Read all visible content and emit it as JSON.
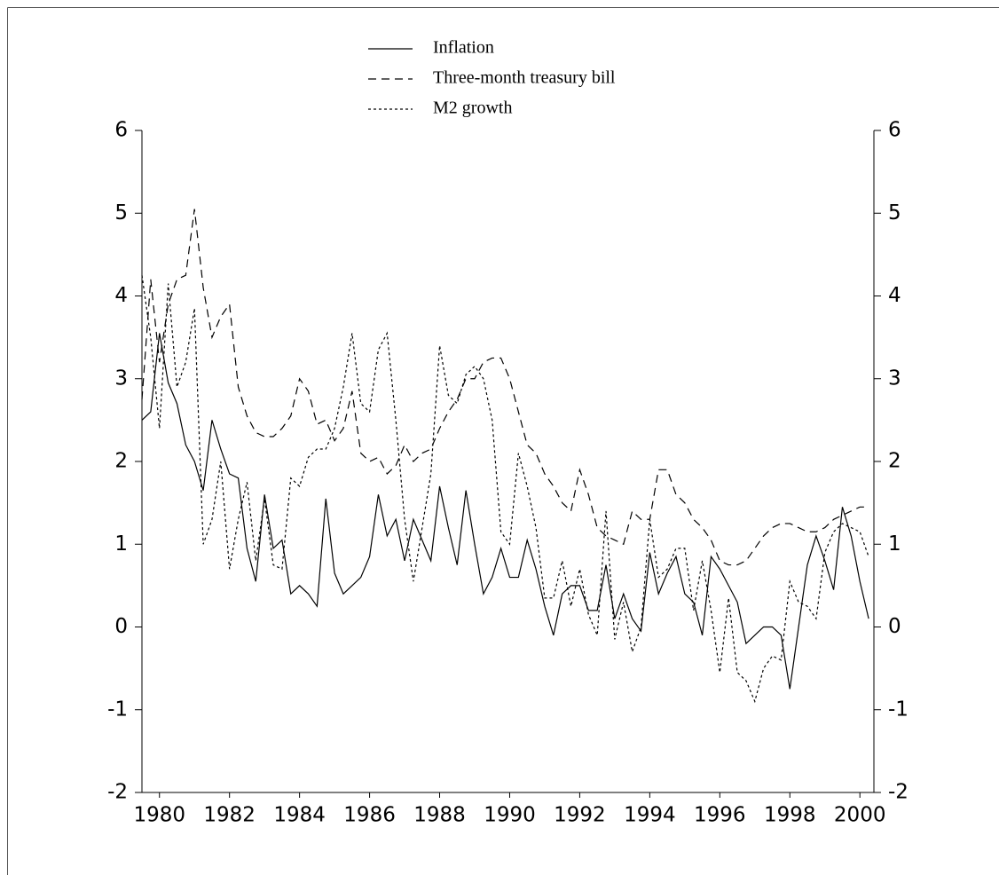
{
  "chart_data": {
    "type": "line",
    "x": [
      1979.5,
      1979.75,
      1980,
      1980.25,
      1980.5,
      1980.75,
      1981,
      1981.25,
      1981.5,
      1981.75,
      1982,
      1982.25,
      1982.5,
      1982.75,
      1983,
      1983.25,
      1983.5,
      1983.75,
      1984,
      1984.25,
      1984.5,
      1984.75,
      1985,
      1985.25,
      1985.5,
      1985.75,
      1986,
      1986.25,
      1986.5,
      1986.75,
      1987,
      1987.25,
      1987.5,
      1987.75,
      1988,
      1988.25,
      1988.5,
      1988.75,
      1989,
      1989.25,
      1989.5,
      1989.75,
      1990,
      1990.25,
      1990.5,
      1990.75,
      1991,
      1991.25,
      1991.5,
      1991.75,
      1992,
      1992.25,
      1992.5,
      1992.75,
      1993,
      1993.25,
      1993.5,
      1993.75,
      1994,
      1994.25,
      1994.5,
      1994.75,
      1995,
      1995.25,
      1995.5,
      1995.75,
      1996,
      1996.25,
      1996.5,
      1996.75,
      1997,
      1997.25,
      1997.5,
      1997.75,
      1998,
      1998.25,
      1998.5,
      1998.75,
      1999,
      1999.25,
      1999.5,
      1999.75,
      2000,
      2000.25
    ],
    "series": [
      {
        "name": "Inflation",
        "color": "#000000",
        "dash": "solid",
        "values": [
          2.5,
          2.6,
          3.55,
          2.95,
          2.7,
          2.2,
          2.0,
          1.65,
          2.5,
          2.15,
          1.85,
          1.8,
          0.95,
          0.55,
          1.6,
          0.95,
          1.05,
          0.4,
          0.5,
          0.4,
          0.25,
          1.55,
          0.65,
          0.4,
          0.5,
          0.6,
          0.85,
          1.6,
          1.1,
          1.3,
          0.8,
          1.3,
          1.05,
          0.8,
          1.7,
          1.2,
          0.75,
          1.65,
          1.0,
          0.4,
          0.6,
          0.95,
          0.6,
          0.6,
          1.05,
          0.7,
          0.25,
          -0.1,
          0.4,
          0.5,
          0.5,
          0.2,
          0.2,
          0.75,
          0.1,
          0.4,
          0.1,
          -0.05,
          0.9,
          0.4,
          0.65,
          0.85,
          0.4,
          0.3,
          -0.1,
          0.85,
          0.7,
          0.5,
          0.3,
          -0.2,
          -0.1,
          0.0,
          0.0,
          -0.1,
          -0.75,
          0.0,
          0.75,
          1.1,
          0.8,
          0.45,
          1.45,
          1.1,
          0.55,
          0.1
        ]
      },
      {
        "name": "Three-month treasury bill",
        "color": "#000000",
        "dash": "dashed",
        "values": [
          2.75,
          4.2,
          3.2,
          3.9,
          4.2,
          4.25,
          5.05,
          4.1,
          3.5,
          3.75,
          3.9,
          2.9,
          2.55,
          2.35,
          2.3,
          2.3,
          2.4,
          2.55,
          3.0,
          2.85,
          2.45,
          2.5,
          2.25,
          2.4,
          2.85,
          2.1,
          2.0,
          2.05,
          1.85,
          1.95,
          2.2,
          2.0,
          2.1,
          2.15,
          2.4,
          2.6,
          2.75,
          3.0,
          3.0,
          3.2,
          3.25,
          3.25,
          3.0,
          2.6,
          2.2,
          2.1,
          1.85,
          1.7,
          1.5,
          1.4,
          1.9,
          1.6,
          1.2,
          1.1,
          1.05,
          1.0,
          1.4,
          1.3,
          1.3,
          1.9,
          1.9,
          1.6,
          1.5,
          1.3,
          1.2,
          1.05,
          0.8,
          0.75,
          0.75,
          0.8,
          0.95,
          1.1,
          1.2,
          1.25,
          1.25,
          1.2,
          1.15,
          1.15,
          1.2,
          1.3,
          1.35,
          1.4,
          1.45,
          1.45
        ]
      },
      {
        "name": "M2 growth",
        "color": "#000000",
        "dash": "dotted",
        "values": [
          4.25,
          3.5,
          2.4,
          4.15,
          2.9,
          3.2,
          3.85,
          1.0,
          1.3,
          2.0,
          0.7,
          1.3,
          1.75,
          0.8,
          1.55,
          0.75,
          0.7,
          1.8,
          1.7,
          2.05,
          2.15,
          2.15,
          2.4,
          2.9,
          3.55,
          2.7,
          2.6,
          3.35,
          3.55,
          2.5,
          1.3,
          0.55,
          1.2,
          1.85,
          3.4,
          2.8,
          2.7,
          3.05,
          3.15,
          3.0,
          2.5,
          1.15,
          1.0,
          2.1,
          1.7,
          1.2,
          0.35,
          0.35,
          0.8,
          0.25,
          0.7,
          0.15,
          -0.1,
          1.4,
          -0.15,
          0.3,
          -0.3,
          0.0,
          1.3,
          0.6,
          0.7,
          0.95,
          0.95,
          0.2,
          0.8,
          0.2,
          -0.55,
          0.35,
          -0.55,
          -0.65,
          -0.9,
          -0.5,
          -0.35,
          -0.4,
          0.55,
          0.3,
          0.25,
          0.1,
          0.9,
          1.15,
          1.25,
          1.2,
          1.15,
          0.85
        ]
      }
    ],
    "xlim": [
      1979.5,
      2000.4
    ],
    "xticks": [
      1980,
      1982,
      1984,
      1986,
      1988,
      1990,
      1992,
      1994,
      1996,
      1998,
      2000
    ],
    "ylim": [
      -2,
      6
    ],
    "yticks": [
      -2,
      -1,
      0,
      1,
      2,
      3,
      4,
      5,
      6
    ],
    "y2lim": [
      -2,
      6
    ],
    "y2ticks": [
      -2,
      -1,
      0,
      1,
      2,
      3,
      4,
      5,
      6
    ],
    "grid": false
  }
}
